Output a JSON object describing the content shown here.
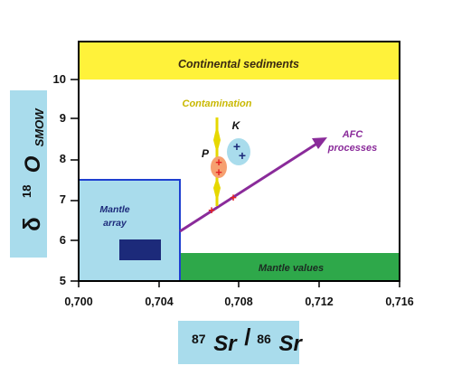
{
  "colors": {
    "sediments": "#fff23a",
    "mantle_values": "#2ea84a",
    "mantle_array": "#a9dcec",
    "mantle_array_border": "#1e3fd0",
    "mantle_core": "#1c2a7a",
    "contamination": "#e6d800",
    "afc": "#8a2b9a",
    "p_blob": "#f6a070",
    "k_blob": "#a9dcec",
    "red_marks": "#e52222",
    "blue_marks": "#1c2a7a",
    "label_box": "#a9dcec"
  },
  "axes": {
    "x": {
      "min": 0.7,
      "max": 0.716,
      "ticks": [
        "0,700",
        "0,704",
        "0,708",
        "0,712",
        "0,716"
      ],
      "label_sup1": "87",
      "label_main1": "Sr",
      "label_sep": "/",
      "label_sup2": "86",
      "label_main2": "Sr"
    },
    "y": {
      "min": 5,
      "max": 10,
      "ticks": [
        "5",
        "6",
        "7",
        "8",
        "9",
        "10"
      ],
      "label_delta": "δ",
      "label_sup": "18",
      "label_main": "O",
      "label_sub": "SMOW"
    }
  },
  "fields": {
    "continental_sediments": "Continental sediments",
    "mantle_values": "Mantle values",
    "mantle_array_line1": "Mantle",
    "mantle_array_line2": "array",
    "contamination": "Contamination",
    "afc_line1": "AFC",
    "afc_line2": "processes",
    "p_label": "P",
    "k_label": "K"
  },
  "symbols": {
    "plus": "+"
  }
}
